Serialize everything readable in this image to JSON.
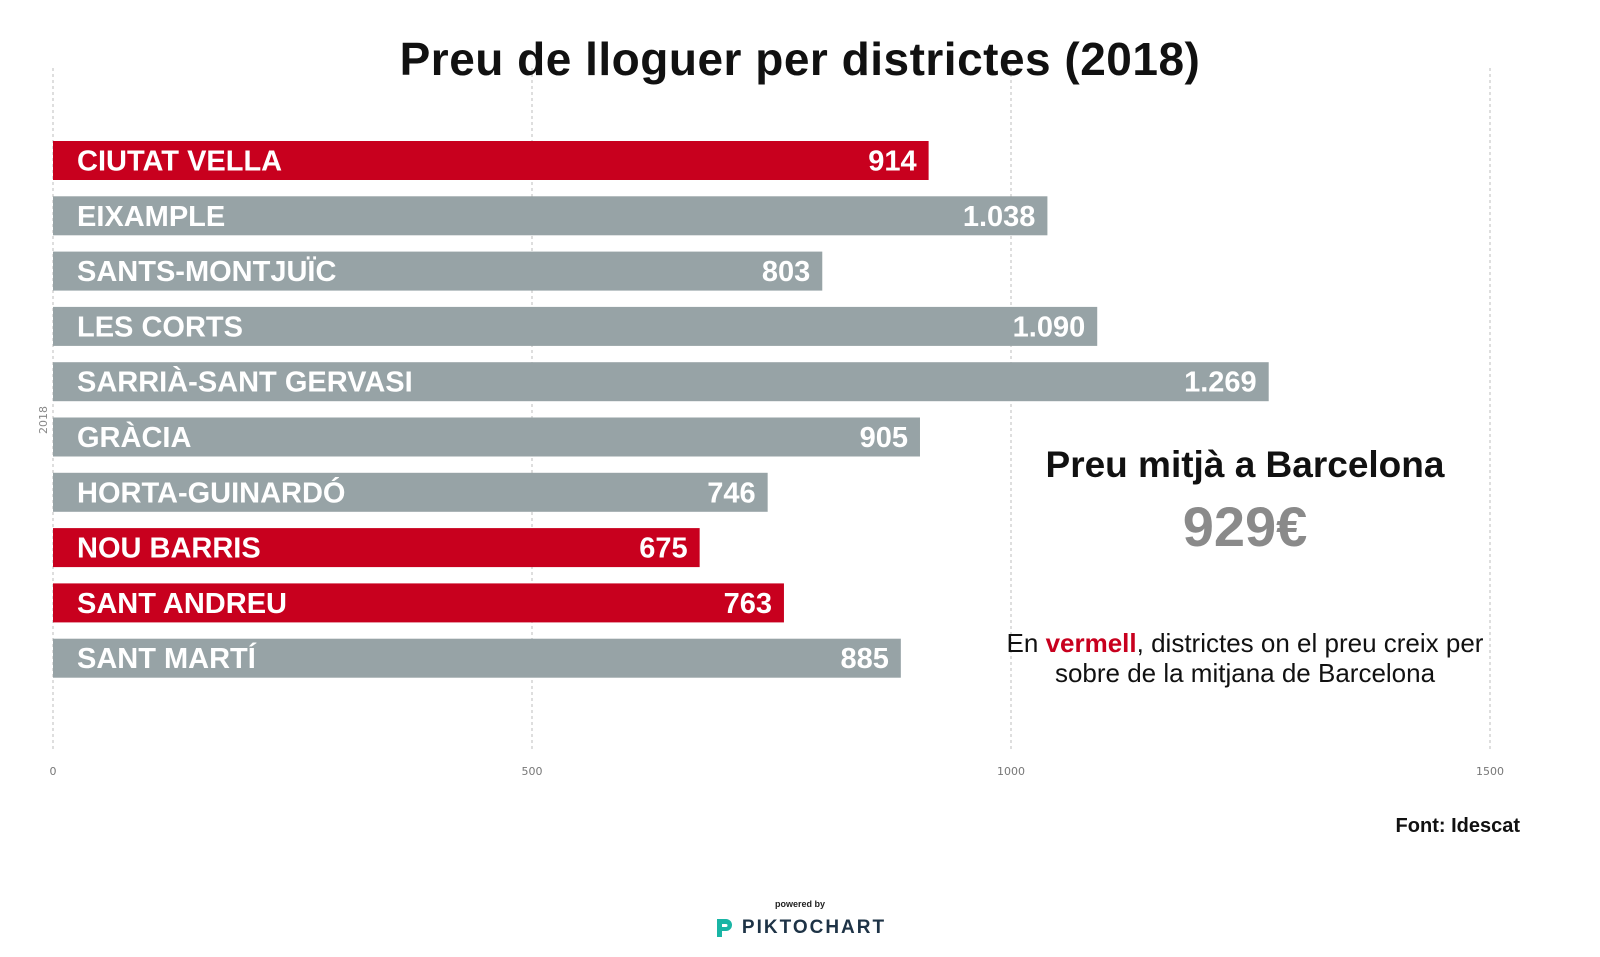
{
  "chart_data": {
    "type": "bar",
    "orientation": "horizontal",
    "title": "Preu de lloguer per districtes (2018)",
    "axis_label": "2018",
    "categories": [
      "CIUTAT VELLA",
      "EIXAMPLE",
      "SANTS-MONTJUÏC",
      "LES CORTS",
      "SARRIÀ-SANT GERVASI",
      "GRÀCIA",
      "HORTA-GUINARDÓ",
      "NOU BARRIS",
      "SANT ANDREU",
      "SANT MARTÍ"
    ],
    "values": [
      914,
      1038,
      803,
      1090,
      1269,
      905,
      746,
      675,
      763,
      885
    ],
    "value_labels": [
      "914",
      "1.038",
      "803",
      "1.090",
      "1.269",
      "905",
      "746",
      "675",
      "763",
      "885"
    ],
    "highlighted": [
      true,
      false,
      false,
      false,
      false,
      false,
      false,
      true,
      true,
      false
    ],
    "xlim": [
      0,
      1500
    ],
    "xticks": [
      0,
      500,
      1000,
      1500
    ],
    "xtick_labels": [
      "0",
      "500",
      "1000",
      "1500"
    ],
    "grid": true,
    "colors": {
      "highlight": "#c8001e",
      "default": "#97a3a6"
    }
  },
  "average": {
    "title": "Preu mitjà a Barcelona",
    "value": "929€"
  },
  "note": {
    "prefix": "En ",
    "highlight": "vermell",
    "suffix": ", districtes on el preu creix per sobre de la mitjana de Barcelona"
  },
  "source": "Font: Idescat",
  "brand": {
    "powered": "powered by",
    "name": "PIKTOCHART",
    "icon": "piktochart-logo-icon"
  }
}
